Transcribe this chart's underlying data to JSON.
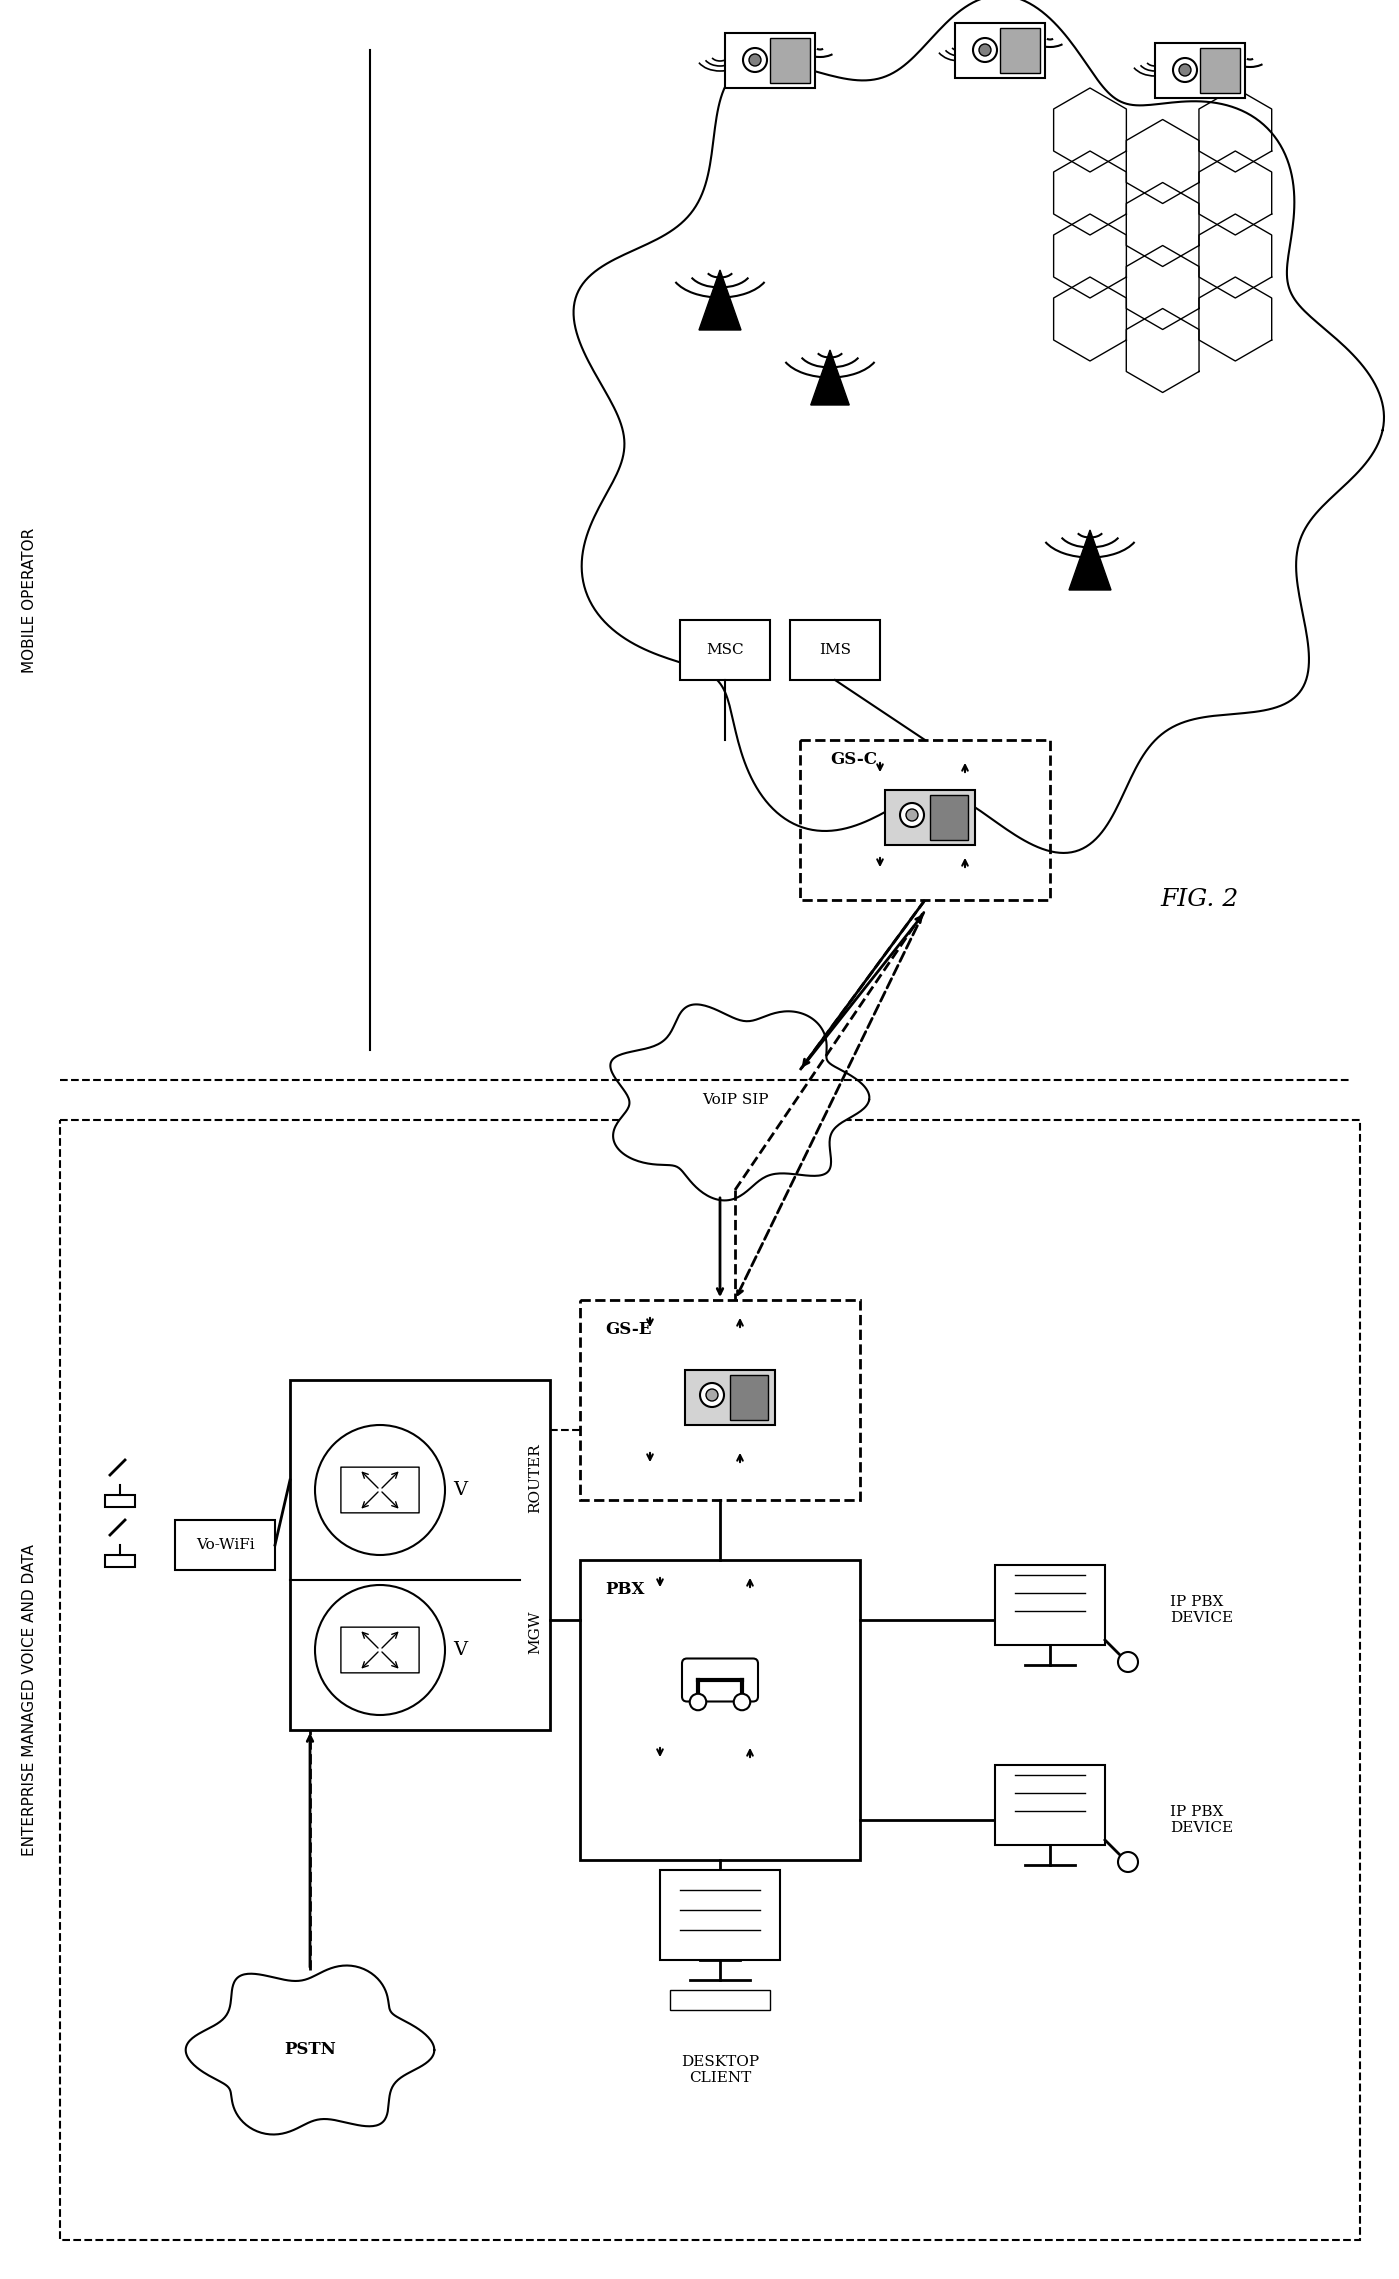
{
  "title": "FIG. 2",
  "bg_color": "#ffffff",
  "label_enterprise": "ENTERPRISE MANAGED VOICE AND DATA",
  "label_mobile": "MOBILE OPERATOR",
  "label_pstn": "PSTN",
  "label_voip": "VoIP SIP",
  "label_vo_wifi": "Vo-WiFi",
  "label_router": "ROUTER",
  "label_mgw": "MGW",
  "label_gse": "GS-E",
  "label_gsc": "GS-C",
  "label_pbx": "PBX",
  "label_msc": "MSC",
  "label_ims": "IMS",
  "label_desktop": "DESKTOP\nCLIENT",
  "label_ip_pbx1": "IP PBX\nDEVICE",
  "label_ip_pbx2": "IP PBX\nDEVICE"
}
